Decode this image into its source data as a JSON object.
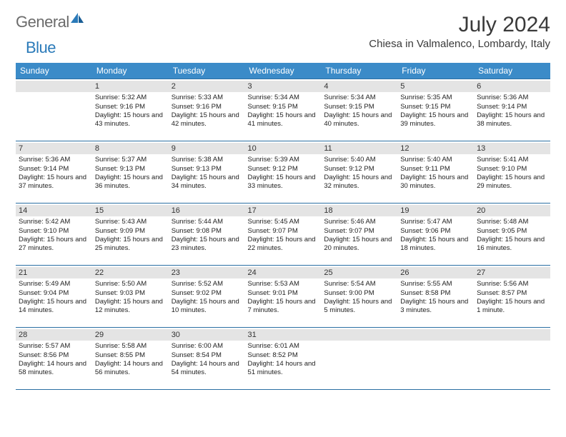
{
  "logo": {
    "part1": "General",
    "part2": "Blue"
  },
  "title": "July 2024",
  "location": "Chiesa in Valmalenco, Lombardy, Italy",
  "colors": {
    "header_bg": "#3b8bc8",
    "header_fg": "#ffffff",
    "daynum_bg": "#e4e4e4",
    "row_border": "#2a6fa3",
    "logo_gray": "#6b6b6b",
    "logo_blue": "#2a7ab9"
  },
  "weekdays": [
    "Sunday",
    "Monday",
    "Tuesday",
    "Wednesday",
    "Thursday",
    "Friday",
    "Saturday"
  ],
  "weeks": [
    [
      null,
      {
        "n": "1",
        "sr": "5:32 AM",
        "ss": "9:16 PM",
        "dl": "15 hours and 43 minutes."
      },
      {
        "n": "2",
        "sr": "5:33 AM",
        "ss": "9:16 PM",
        "dl": "15 hours and 42 minutes."
      },
      {
        "n": "3",
        "sr": "5:34 AM",
        "ss": "9:15 PM",
        "dl": "15 hours and 41 minutes."
      },
      {
        "n": "4",
        "sr": "5:34 AM",
        "ss": "9:15 PM",
        "dl": "15 hours and 40 minutes."
      },
      {
        "n": "5",
        "sr": "5:35 AM",
        "ss": "9:15 PM",
        "dl": "15 hours and 39 minutes."
      },
      {
        "n": "6",
        "sr": "5:36 AM",
        "ss": "9:14 PM",
        "dl": "15 hours and 38 minutes."
      }
    ],
    [
      {
        "n": "7",
        "sr": "5:36 AM",
        "ss": "9:14 PM",
        "dl": "15 hours and 37 minutes."
      },
      {
        "n": "8",
        "sr": "5:37 AM",
        "ss": "9:13 PM",
        "dl": "15 hours and 36 minutes."
      },
      {
        "n": "9",
        "sr": "5:38 AM",
        "ss": "9:13 PM",
        "dl": "15 hours and 34 minutes."
      },
      {
        "n": "10",
        "sr": "5:39 AM",
        "ss": "9:12 PM",
        "dl": "15 hours and 33 minutes."
      },
      {
        "n": "11",
        "sr": "5:40 AM",
        "ss": "9:12 PM",
        "dl": "15 hours and 32 minutes."
      },
      {
        "n": "12",
        "sr": "5:40 AM",
        "ss": "9:11 PM",
        "dl": "15 hours and 30 minutes."
      },
      {
        "n": "13",
        "sr": "5:41 AM",
        "ss": "9:10 PM",
        "dl": "15 hours and 29 minutes."
      }
    ],
    [
      {
        "n": "14",
        "sr": "5:42 AM",
        "ss": "9:10 PM",
        "dl": "15 hours and 27 minutes."
      },
      {
        "n": "15",
        "sr": "5:43 AM",
        "ss": "9:09 PM",
        "dl": "15 hours and 25 minutes."
      },
      {
        "n": "16",
        "sr": "5:44 AM",
        "ss": "9:08 PM",
        "dl": "15 hours and 23 minutes."
      },
      {
        "n": "17",
        "sr": "5:45 AM",
        "ss": "9:07 PM",
        "dl": "15 hours and 22 minutes."
      },
      {
        "n": "18",
        "sr": "5:46 AM",
        "ss": "9:07 PM",
        "dl": "15 hours and 20 minutes."
      },
      {
        "n": "19",
        "sr": "5:47 AM",
        "ss": "9:06 PM",
        "dl": "15 hours and 18 minutes."
      },
      {
        "n": "20",
        "sr": "5:48 AM",
        "ss": "9:05 PM",
        "dl": "15 hours and 16 minutes."
      }
    ],
    [
      {
        "n": "21",
        "sr": "5:49 AM",
        "ss": "9:04 PM",
        "dl": "15 hours and 14 minutes."
      },
      {
        "n": "22",
        "sr": "5:50 AM",
        "ss": "9:03 PM",
        "dl": "15 hours and 12 minutes."
      },
      {
        "n": "23",
        "sr": "5:52 AM",
        "ss": "9:02 PM",
        "dl": "15 hours and 10 minutes."
      },
      {
        "n": "24",
        "sr": "5:53 AM",
        "ss": "9:01 PM",
        "dl": "15 hours and 7 minutes."
      },
      {
        "n": "25",
        "sr": "5:54 AM",
        "ss": "9:00 PM",
        "dl": "15 hours and 5 minutes."
      },
      {
        "n": "26",
        "sr": "5:55 AM",
        "ss": "8:58 PM",
        "dl": "15 hours and 3 minutes."
      },
      {
        "n": "27",
        "sr": "5:56 AM",
        "ss": "8:57 PM",
        "dl": "15 hours and 1 minute."
      }
    ],
    [
      {
        "n": "28",
        "sr": "5:57 AM",
        "ss": "8:56 PM",
        "dl": "14 hours and 58 minutes."
      },
      {
        "n": "29",
        "sr": "5:58 AM",
        "ss": "8:55 PM",
        "dl": "14 hours and 56 minutes."
      },
      {
        "n": "30",
        "sr": "6:00 AM",
        "ss": "8:54 PM",
        "dl": "14 hours and 54 minutes."
      },
      {
        "n": "31",
        "sr": "6:01 AM",
        "ss": "8:52 PM",
        "dl": "14 hours and 51 minutes."
      },
      null,
      null,
      null
    ]
  ],
  "labels": {
    "sunrise": "Sunrise:",
    "sunset": "Sunset:",
    "daylight": "Daylight:"
  }
}
